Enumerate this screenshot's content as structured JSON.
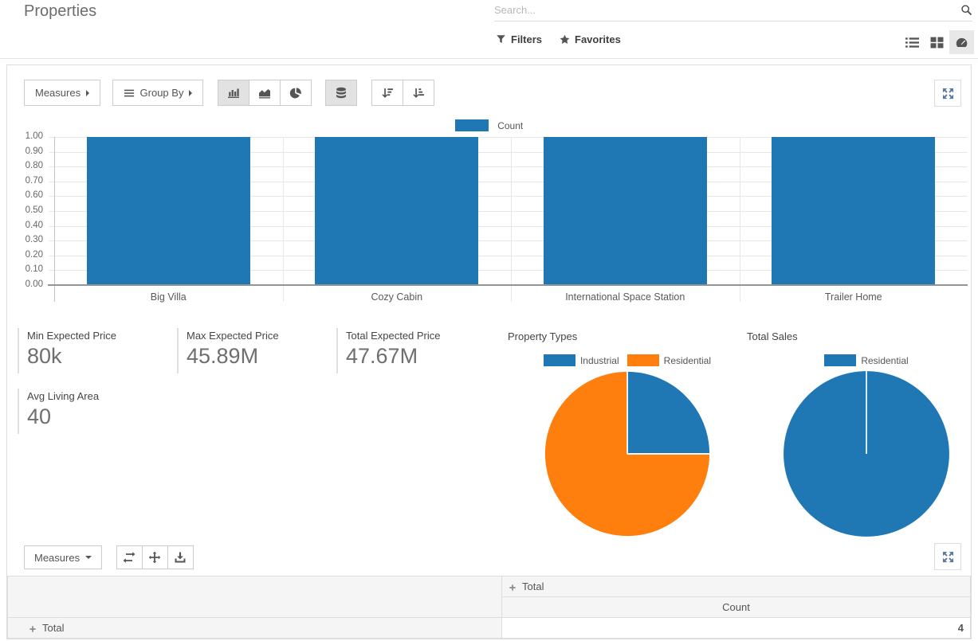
{
  "header": {
    "title": "Properties",
    "search": {
      "placeholder": "Search..."
    },
    "filters_label": "Filters",
    "favorites_label": "Favorites",
    "view_switcher": {
      "views": [
        "list",
        "kanban",
        "dashboard"
      ],
      "active": "dashboard"
    }
  },
  "graph_section": {
    "measures_label": "Measures",
    "group_by_label": "Group By",
    "active_chart_type": "bar",
    "stacked_active": true
  },
  "chart_data": [
    {
      "type": "bar",
      "categories": [
        "Big Villa",
        "Cozy Cabin",
        "International Space Station",
        "Trailer Home"
      ],
      "series": [
        {
          "name": "Count",
          "color": "#1f77b4",
          "values": [
            1,
            1,
            1,
            1
          ]
        }
      ],
      "ylim": [
        0,
        1
      ],
      "ytick_step": 0.1,
      "grid": true,
      "legend_position": "top"
    },
    {
      "type": "pie",
      "title": "Property Types",
      "labels": [
        "Industrial",
        "Residential"
      ],
      "values": [
        1,
        3
      ],
      "colors": [
        "#1f77b4",
        "#ff7f0e"
      ],
      "legend_position": "top"
    },
    {
      "type": "pie",
      "title": "Total Sales",
      "labels": [
        "Residential"
      ],
      "values": [
        1
      ],
      "colors": [
        "#1f77b4"
      ],
      "legend_position": "top"
    }
  ],
  "kpis": [
    {
      "label": "Min Expected Price",
      "value": "80k"
    },
    {
      "label": "Max Expected Price",
      "value": "45.89M"
    },
    {
      "label": "Total Expected Price",
      "value": "47.67M"
    },
    {
      "label": "Avg Living Area",
      "value": "40"
    }
  ],
  "pivot_section": {
    "measures_label": "Measures",
    "column_header": "Total",
    "measure_header": "Count",
    "row_header": "Total",
    "total_value": "4"
  },
  "icons": {
    "search": "magnifier",
    "filters": "funnel",
    "favorites": "star",
    "view_list": "list",
    "view_kanban": "grid",
    "view_dashboard": "tachometer",
    "chart_bar": "bar-chart",
    "chart_line": "area-chart",
    "chart_pie": "pie-chart",
    "stacked": "database",
    "sort_desc": "sort-amount-desc",
    "sort_asc": "sort-amount-asc",
    "fullscreen": "arrows-alt",
    "flip_axis": "exchange",
    "expand_all": "arrows",
    "download": "download",
    "expand_group": "plus"
  },
  "colors": {
    "primary_blue": "#1f77b4",
    "orange": "#ff7f0e",
    "active_button_bg": "#e2e2e2"
  }
}
